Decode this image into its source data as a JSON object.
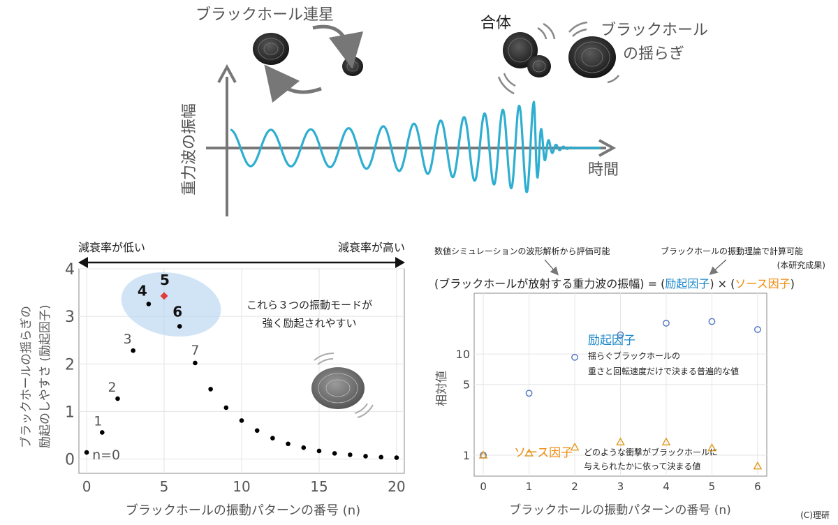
{
  "top": {
    "binary_label": "ブラックホール連星",
    "merger_label": "合体",
    "ringdown_label": [
      "ブラックホール",
      "の揺らぎ"
    ],
    "ylabel": "重力波の振幅",
    "xlabel": "時間"
  },
  "left_panel": {
    "arrow_left": "減衰率が低い",
    "arrow_right": "減衰率が高い",
    "annotation": [
      "これら３つの振動モードが",
      "強く励起されやすい"
    ],
    "point_labels": [
      {
        "n": 0,
        "text": "n=0",
        "bold": false
      },
      {
        "n": 1,
        "text": "1",
        "bold": false
      },
      {
        "n": 2,
        "text": "2",
        "bold": false
      },
      {
        "n": 3,
        "text": "3",
        "bold": false
      },
      {
        "n": 4,
        "text": "4",
        "bold": true
      },
      {
        "n": 5,
        "text": "5",
        "bold": true
      },
      {
        "n": 6,
        "text": "6",
        "bold": true
      },
      {
        "n": 7,
        "text": "7",
        "bold": false
      }
    ]
  },
  "right_panel": {
    "top_note_left": "数値シミュレーションの波形解析から評価可能",
    "top_note_right": "ブラックホールの振動理論で計算可能",
    "top_note_right_sub": "(本研究成果)",
    "formula": {
      "lhs": "(ブラックホールが放射する重力波の振幅)",
      "eq": " = (",
      "excitation": "励起因子",
      "times": ") × (",
      "source": "ソース因子",
      "close": ")"
    },
    "excitation_title": "励起因子",
    "excitation_desc": [
      "揺らぐブラックホールの",
      "重さと回転速度だけで決まる普遍的な値"
    ],
    "source_title": "ソース因子",
    "source_desc": [
      "どのような衝撃がブラックホールに",
      "与えられたかに依って決まる値"
    ]
  },
  "credit": "(C)理研",
  "chart_data": [
    {
      "type": "scatter",
      "title": "",
      "xlabel": "ブラックホールの振動パターンの番号 (n)",
      "ylabel": [
        "ブラックホールの揺らぎの",
        "励起のしやすさ (励起因子)"
      ],
      "xlim": [
        -0.5,
        20.5
      ],
      "ylim": [
        -0.3,
        4
      ],
      "xticks": [
        0,
        5,
        10,
        15,
        20
      ],
      "yticks": [
        0,
        1,
        2,
        3,
        4
      ],
      "grid": true,
      "highlight_color": "#e23b3b",
      "point_color": "#000000",
      "series": [
        {
          "x": [
            0,
            1,
            2,
            3,
            4,
            5,
            6,
            7,
            8,
            9,
            10,
            11,
            12,
            13,
            14,
            15,
            16,
            17,
            18,
            19,
            20
          ],
          "y": [
            0.14,
            0.56,
            1.27,
            2.28,
            3.26,
            3.43,
            2.79,
            2.02,
            1.47,
            1.08,
            0.81,
            0.6,
            0.44,
            0.32,
            0.24,
            0.17,
            0.12,
            0.09,
            0.06,
            0.04,
            0.03
          ]
        }
      ],
      "highlight": {
        "x": 5,
        "y": 3.43,
        "marker": "diamond"
      }
    },
    {
      "type": "scatter",
      "title": "",
      "xlabel": "ブラックホールの振動パターンの番号 (n)",
      "ylabel": "相対値",
      "xlim": [
        -0.2,
        6.2
      ],
      "ylim": [
        0.62,
        40
      ],
      "yscale": "log",
      "xticks": [
        0,
        1,
        2,
        3,
        4,
        5,
        6
      ],
      "yticks": [
        1,
        5,
        10
      ],
      "grid": true,
      "series": [
        {
          "name": "励起因子",
          "marker": "circle",
          "color": "#4f73c0",
          "x": [
            0,
            1,
            2,
            3,
            4,
            5,
            6
          ],
          "y": [
            1,
            4.1,
            9.3,
            15.5,
            20.2,
            21,
            17.5
          ]
        },
        {
          "name": "ソース因子",
          "marker": "triangle",
          "color": "#e09a1e",
          "x": [
            0,
            1,
            2,
            3,
            4,
            5,
            6
          ],
          "y": [
            1,
            1.05,
            1.2,
            1.35,
            1.35,
            1.18,
            0.78
          ]
        }
      ]
    }
  ]
}
